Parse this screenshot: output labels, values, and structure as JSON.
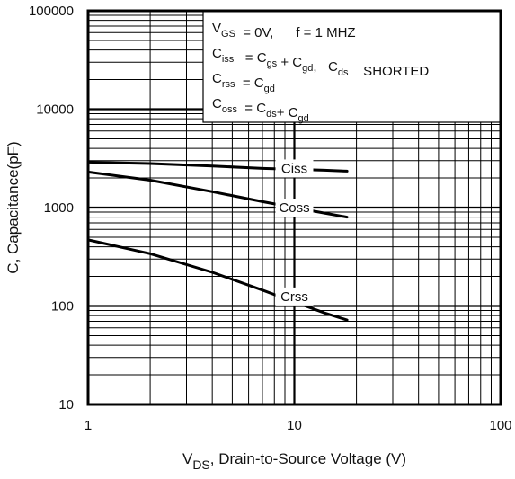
{
  "chart_data": {
    "type": "line",
    "xlabel": {
      "main": "V",
      "sub": "DS",
      "rest": ", Drain-to-Source Voltage (V)"
    },
    "ylabel": "C, Capacitance(pF)",
    "xscale": "log",
    "yscale": "log",
    "xlim": [
      1,
      100
    ],
    "ylim": [
      10,
      100000
    ],
    "grid": true,
    "x_ticks": [
      {
        "value": 1,
        "label": "1"
      },
      {
        "value": 10,
        "label": "10"
      },
      {
        "value": 100,
        "label": "100"
      }
    ],
    "y_ticks": [
      {
        "value": 10,
        "label": "10"
      },
      {
        "value": 100,
        "label": "100"
      },
      {
        "value": 1000,
        "label": "1000"
      },
      {
        "value": 10000,
        "label": "10000"
      },
      {
        "value": 100000,
        "label": "100000"
      }
    ],
    "series": [
      {
        "name": "Ciss",
        "label_at": [
          10,
          2500
        ],
        "points": [
          [
            1,
            2900
          ],
          [
            2,
            2800
          ],
          [
            4,
            2650
          ],
          [
            7,
            2500
          ],
          [
            10,
            2450
          ],
          [
            14,
            2400
          ],
          [
            18,
            2350
          ]
        ]
      },
      {
        "name": "Coss",
        "label_at": [
          10,
          1000
        ],
        "points": [
          [
            1,
            2300
          ],
          [
            2,
            1900
          ],
          [
            4,
            1450
          ],
          [
            7,
            1150
          ],
          [
            10,
            1000
          ],
          [
            14,
            880
          ],
          [
            18,
            800
          ]
        ]
      },
      {
        "name": "Crss",
        "label_at": [
          10,
          125
        ],
        "points": [
          [
            1,
            470
          ],
          [
            2,
            340
          ],
          [
            4,
            220
          ],
          [
            7,
            145
          ],
          [
            10,
            110
          ],
          [
            14,
            85
          ],
          [
            18,
            72
          ]
        ]
      }
    ],
    "legend": {
      "placement": "top-right",
      "lines": [
        [
          {
            "t": "V"
          },
          {
            "t": "GS",
            "sub": true
          },
          {
            "t": "  = 0V,      f = 1 MHZ"
          }
        ],
        [
          {
            "t": "C"
          },
          {
            "t": "iss",
            "sub": true
          },
          {
            "t": "   = C"
          },
          {
            "t": "gs",
            "sub": true
          },
          {
            "t": " + C"
          },
          {
            "t": "gd",
            "sub": true
          },
          {
            "t": ",   C"
          },
          {
            "t": "ds",
            "sub": true
          },
          {
            "t": "    SHORTED"
          }
        ],
        [
          {
            "t": "C"
          },
          {
            "t": "rss",
            "sub": true
          },
          {
            "t": "  = C"
          },
          {
            "t": "gd",
            "sub": true
          }
        ],
        [
          {
            "t": "C"
          },
          {
            "t": "oss",
            "sub": true
          },
          {
            "t": "  = C"
          },
          {
            "t": "ds",
            "sub": true
          },
          {
            "t": "+ C"
          },
          {
            "t": "gd",
            "sub": true
          }
        ]
      ]
    }
  }
}
